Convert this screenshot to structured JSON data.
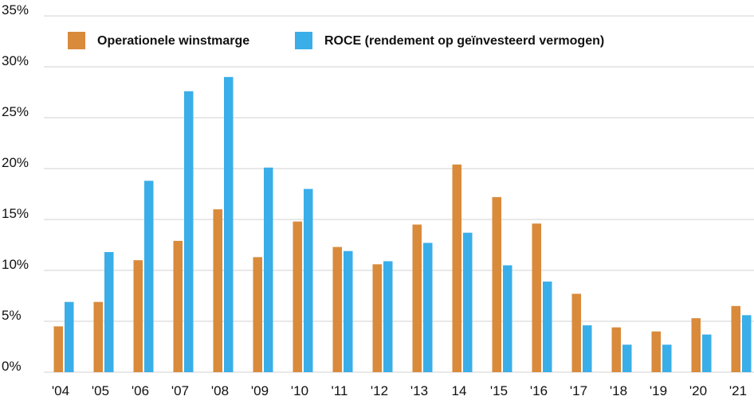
{
  "chart_data": {
    "type": "bar",
    "categories": [
      "'04",
      "'05",
      "'06",
      "'07",
      "'08",
      "'09",
      "'10",
      "'11",
      "'12",
      "'13",
      "14",
      "'15",
      "'16",
      "'17",
      "'18",
      "'19",
      "'20",
      "'21"
    ],
    "series": [
      {
        "name": "Operationele winstmarge",
        "color": "#d98a3a",
        "values": [
          4.5,
          6.9,
          11.0,
          12.9,
          16.0,
          11.3,
          14.8,
          12.3,
          10.6,
          14.5,
          20.4,
          17.2,
          14.6,
          7.7,
          4.4,
          4.0,
          5.3,
          6.5
        ]
      },
      {
        "name": "ROCE (rendement op geïnvesteerd vermogen)",
        "color": "#3aaee8",
        "values": [
          6.9,
          11.8,
          18.8,
          27.6,
          29.0,
          20.1,
          18.0,
          11.9,
          10.9,
          12.7,
          13.7,
          10.5,
          8.9,
          4.6,
          2.7,
          2.7,
          3.7,
          5.6
        ]
      }
    ],
    "ylim": [
      0,
      35
    ],
    "yticks": [
      {
        "value": 0,
        "label": "0%"
      },
      {
        "value": 5,
        "label": "5%"
      },
      {
        "value": 10,
        "label": "10%"
      },
      {
        "value": 15,
        "label": "15%"
      },
      {
        "value": 20,
        "label": "20%"
      },
      {
        "value": 25,
        "label": "25%"
      },
      {
        "value": 30,
        "label": "30%"
      },
      {
        "value": 35,
        "label": "35%"
      }
    ],
    "grid": true
  }
}
